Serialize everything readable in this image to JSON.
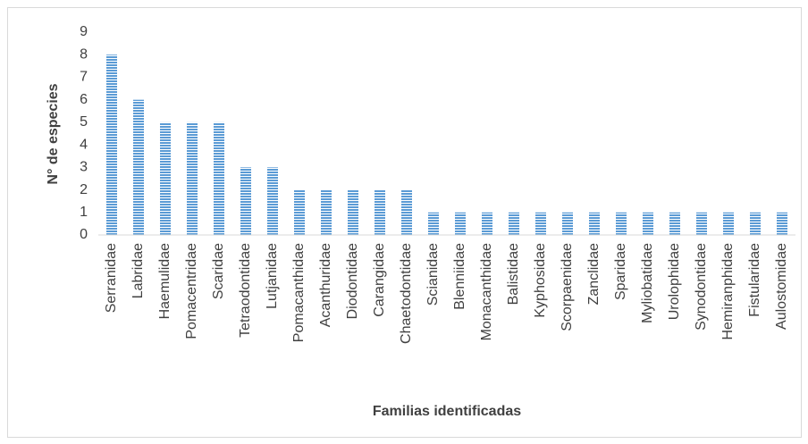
{
  "chart_data": {
    "type": "bar",
    "xlabel": "Familias identificadas",
    "ylabel": "N° de especies",
    "categories": [
      "Serranidae",
      "Labridae",
      "Haemulidae",
      "Pomacentridae",
      "Scaridae",
      "Tetraodontidae",
      "Lutjanidae",
      "Pomacanthidae",
      "Acanthuridae",
      "Diodontidae",
      "Carangidae",
      "Chaetodontidae",
      "Scianidae",
      "Blenniidae",
      "Monacanthidae",
      "Balistidae",
      "Kyphosidae",
      "Scorpaenidae",
      "Zanclidae",
      "Sparidae",
      "Myliobatidae",
      "Urolophidae",
      "Synodontidae",
      "Hemiranphidae",
      "Fistularidae",
      "Aulostomidae"
    ],
    "values": [
      8,
      6,
      5,
      5,
      5,
      3,
      3,
      2,
      2,
      2,
      2,
      2,
      1,
      1,
      1,
      1,
      1,
      1,
      1,
      1,
      1,
      1,
      1,
      1,
      1,
      1
    ],
    "color": "#5b9bd5",
    "ylim": [
      0,
      9
    ],
    "yticks": [
      0,
      1,
      2,
      3,
      4,
      5,
      6,
      7,
      8,
      9
    ],
    "grid": false
  }
}
